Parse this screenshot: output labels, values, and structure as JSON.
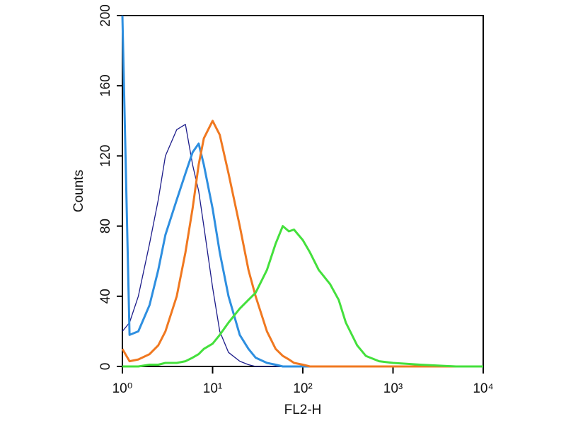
{
  "chart_data": {
    "type": "line",
    "xscale": "log",
    "x_label": "FL2-H",
    "y_label": "Counts",
    "x": [
      1,
      1.2,
      1.5,
      2,
      2.5,
      3,
      4,
      5,
      6,
      7,
      8,
      10,
      12,
      15,
      20,
      25,
      30,
      40,
      50,
      60,
      70,
      80,
      100,
      120,
      150,
      200,
      250,
      300,
      400,
      500,
      700,
      1000,
      2000,
      5000,
      10000
    ],
    "series": [
      {
        "color": "#1c1c8a",
        "width": 1.3,
        "values": [
          20,
          25,
          40,
          70,
          95,
          120,
          135,
          138,
          115,
          100,
          80,
          45,
          20,
          8,
          3,
          1,
          0,
          0,
          0,
          0,
          0,
          0,
          0,
          0,
          0,
          0,
          0,
          0,
          0,
          0,
          0,
          0,
          0,
          0,
          0
        ]
      },
      {
        "color": "#2e8fe0",
        "width": 3,
        "values": [
          200,
          18,
          20,
          35,
          55,
          75,
          95,
          110,
          122,
          127,
          115,
          90,
          65,
          40,
          18,
          10,
          5,
          2,
          1,
          0,
          0,
          0,
          0,
          0,
          0,
          0,
          0,
          0,
          0,
          0,
          0,
          0,
          0,
          0,
          0
        ]
      },
      {
        "color": "#f07820",
        "width": 3,
        "values": [
          10,
          3,
          4,
          7,
          12,
          20,
          40,
          65,
          90,
          115,
          130,
          140,
          132,
          110,
          80,
          55,
          40,
          20,
          10,
          6,
          4,
          2,
          1,
          0,
          0,
          0,
          0,
          0,
          0,
          0,
          0,
          0,
          0,
          0,
          0
        ]
      },
      {
        "color": "#44e03c",
        "width": 3,
        "values": [
          0,
          0,
          0,
          1,
          1,
          2,
          2,
          3,
          5,
          7,
          10,
          13,
          18,
          25,
          33,
          38,
          42,
          55,
          70,
          80,
          77,
          78,
          72,
          65,
          55,
          47,
          38,
          25,
          12,
          6,
          3,
          2,
          1,
          0,
          0
        ]
      }
    ],
    "xlim": [
      1,
      10000
    ],
    "xticks": [
      {
        "value": 1,
        "label": "10⁰"
      },
      {
        "value": 10,
        "label": "10¹"
      },
      {
        "value": 100,
        "label": "10²"
      },
      {
        "value": 1000,
        "label": "10³"
      },
      {
        "value": 10000,
        "label": "10⁴"
      }
    ],
    "ylim": [
      0,
      200
    ],
    "yticks": [
      0,
      40,
      80,
      120,
      160,
      200
    ]
  }
}
